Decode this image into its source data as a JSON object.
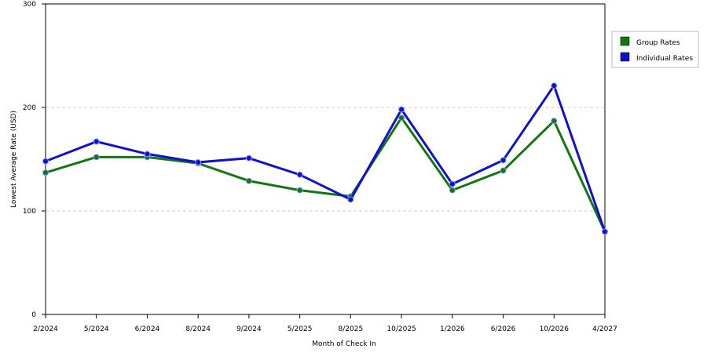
{
  "chart_data": {
    "type": "line",
    "x_label": "Month of Check In",
    "y_label": "Lowest Average Rate (USD)",
    "categories": [
      "2/2024",
      "5/2024",
      "6/2024",
      "8/2024",
      "9/2024",
      "5/2025",
      "8/2025",
      "10/2025",
      "1/2026",
      "6/2026",
      "10/2026",
      "4/2027"
    ],
    "series": [
      {
        "name": "Group Rates",
        "color": "#117711",
        "values": [
          137,
          152,
          152,
          146,
          129,
          120,
          114,
          190,
          120,
          139,
          187,
          80
        ]
      },
      {
        "name": "Individual Rates",
        "color": "#1111cc",
        "values": [
          148,
          167,
          155,
          147,
          151,
          135,
          111,
          198,
          126,
          149,
          221,
          80
        ]
      }
    ],
    "ylim": [
      0,
      300
    ],
    "yticks": [
      0,
      100,
      200,
      300
    ],
    "grid": true
  }
}
